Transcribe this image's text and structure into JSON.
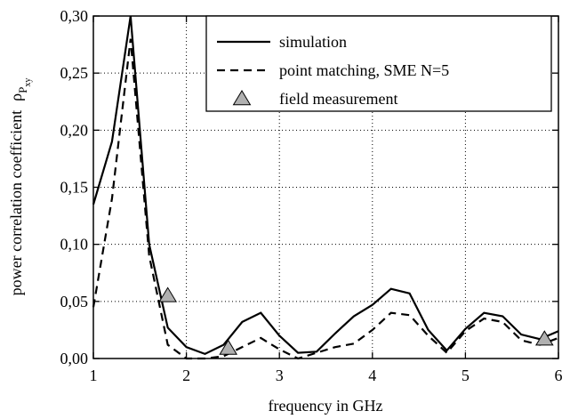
{
  "chart_data": {
    "type": "line",
    "xlabel": "frequency in GHz",
    "ylabel": "power correlation coefficient",
    "ylabel_symbol": "ρ",
    "ylabel_sub": "P",
    "ylabel_subsub": "xy",
    "x": [
      1.0,
      1.2,
      1.4,
      1.6,
      1.8,
      2.0,
      2.2,
      2.4,
      2.6,
      2.8,
      3.0,
      3.2,
      3.4,
      3.6,
      3.8,
      4.0,
      4.2,
      4.4,
      4.6,
      4.8,
      5.0,
      5.2,
      5.4,
      5.6,
      5.8,
      6.0
    ],
    "series": [
      {
        "name": "simulation",
        "color": "#000000",
        "style": "solid",
        "values": [
          0.135,
          0.19,
          0.3,
          0.1,
          0.027,
          0.01,
          0.004,
          0.012,
          0.032,
          0.04,
          0.02,
          0.005,
          0.006,
          0.022,
          0.037,
          0.047,
          0.061,
          0.057,
          0.025,
          0.007,
          0.026,
          0.04,
          0.037,
          0.021,
          0.017,
          0.024
        ]
      },
      {
        "name": "point matching, SME N=5",
        "color": "#000000",
        "style": "dashed",
        "values": [
          0.045,
          0.14,
          0.28,
          0.09,
          0.012,
          0.0,
          0.0,
          0.002,
          0.01,
          0.018,
          0.008,
          0.0,
          0.005,
          0.01,
          0.013,
          0.025,
          0.04,
          0.038,
          0.02,
          0.005,
          0.024,
          0.035,
          0.032,
          0.016,
          0.012,
          0.018
        ]
      },
      {
        "name": "field measurement",
        "color": "#b0b0b0",
        "style": "triangle",
        "x": [
          1.8,
          2.45,
          5.85
        ],
        "values": [
          0.055,
          0.009,
          0.017
        ]
      }
    ],
    "xlim": [
      1,
      6
    ],
    "xticks": [
      1,
      2,
      3,
      4,
      5,
      6
    ],
    "ylim": [
      0,
      0.3
    ],
    "yticks": [
      {
        "value": 0,
        "label": "0,00"
      },
      {
        "value": 0.05,
        "label": "0,05"
      },
      {
        "value": 0.1,
        "label": "0,10"
      },
      {
        "value": 0.15,
        "label": "0,15"
      },
      {
        "value": 0.2,
        "label": "0,20"
      },
      {
        "value": 0.25,
        "label": "0,25"
      },
      {
        "value": 0.3,
        "label": "0,30"
      }
    ],
    "grid": true,
    "legend": "upper right"
  }
}
